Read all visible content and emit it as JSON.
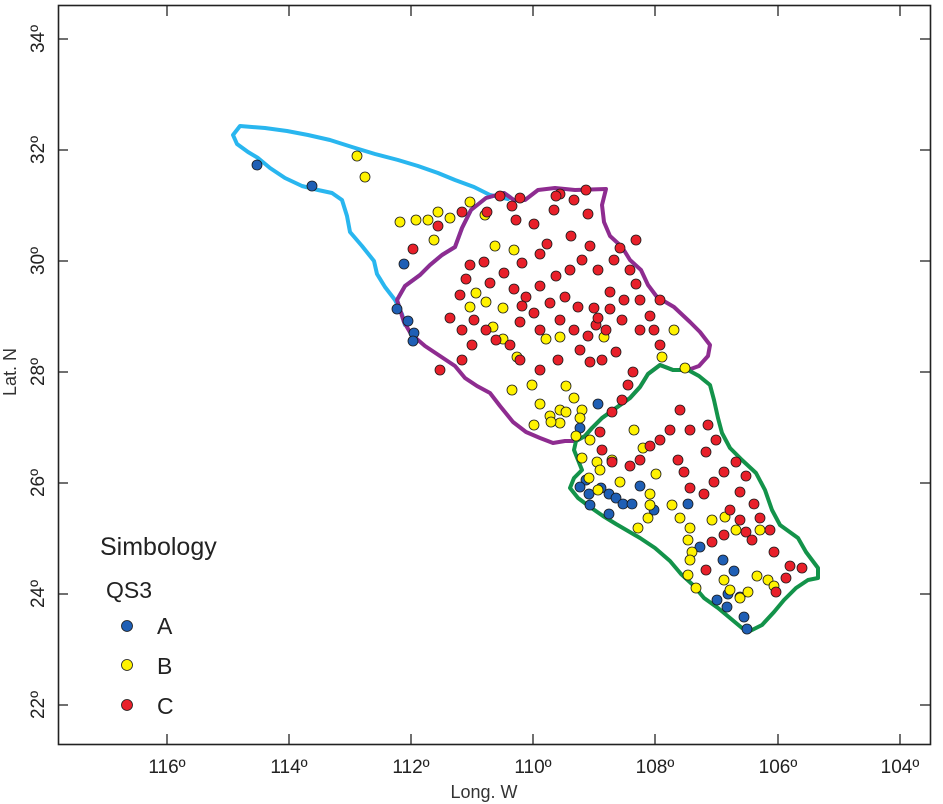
{
  "axes": {
    "xlabel": "Long. W",
    "ylabel": "Lat. N",
    "xticks": [
      "116º",
      "114º",
      "112º",
      "110º",
      "108º",
      "106º",
      "104º"
    ],
    "yticks": [
      "22º",
      "24º",
      "26º",
      "28º",
      "30º",
      "32º",
      "34º"
    ]
  },
  "legend": {
    "title": "Simbology",
    "subtitle": "QS3",
    "items": [
      {
        "label": "A",
        "color": "#1f5fb5"
      },
      {
        "label": "B",
        "color": "#fff200"
      },
      {
        "label": "C",
        "color": "#e8202a"
      }
    ]
  },
  "regions": [
    {
      "color": "#29b6ef"
    },
    {
      "color": "#8e2c90"
    },
    {
      "color": "#13934a"
    }
  ]
}
